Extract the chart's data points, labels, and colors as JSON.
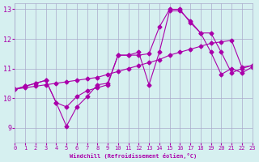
{
  "background_color": "#d6f0f0",
  "grid_color": "#aaaacc",
  "line_color": "#aa00aa",
  "xlabel": "Windchill (Refroidissement éolien,°C)",
  "xlim": [
    0,
    23
  ],
  "ylim": [
    8.5,
    13.2
  ],
  "yticks": [
    9,
    10,
    11,
    12,
    13
  ],
  "xticks": [
    0,
    1,
    2,
    3,
    4,
    5,
    6,
    7,
    8,
    9,
    10,
    11,
    12,
    13,
    14,
    15,
    16,
    17,
    18,
    19,
    20,
    21,
    22,
    23
  ],
  "series1_x": [
    0,
    1,
    2,
    3,
    4,
    5,
    6,
    7,
    8,
    9,
    10,
    11,
    12,
    13,
    14,
    15,
    16,
    17,
    18,
    19,
    20,
    21,
    22,
    23
  ],
  "series1_y": [
    10.3,
    10.35,
    10.4,
    10.45,
    10.5,
    10.55,
    10.6,
    10.65,
    10.7,
    10.8,
    10.9,
    11.0,
    11.1,
    11.2,
    11.3,
    11.45,
    11.55,
    11.65,
    11.75,
    11.85,
    11.9,
    11.95,
    11.05,
    11.1
  ],
  "series2_x": [
    0,
    1,
    2,
    3,
    4,
    5,
    6,
    7,
    8,
    9,
    10,
    11,
    12,
    13,
    14,
    15,
    16,
    17,
    18,
    19,
    20,
    21,
    22,
    23
  ],
  "series2_y": [
    10.3,
    10.4,
    10.5,
    10.6,
    9.85,
    9.7,
    10.05,
    10.25,
    10.35,
    10.45,
    11.45,
    11.45,
    11.55,
    10.45,
    11.55,
    12.95,
    12.95,
    12.6,
    12.2,
    12.2,
    11.55,
    10.85,
    11.0,
    11.1
  ],
  "series3_x": [
    0,
    1,
    2,
    3,
    4,
    5,
    6,
    7,
    8,
    9,
    10,
    11,
    12,
    13,
    14,
    15,
    16,
    17,
    18,
    19,
    20,
    21,
    22,
    23
  ],
  "series3_y": [
    10.3,
    10.4,
    10.5,
    10.6,
    9.85,
    9.05,
    9.7,
    10.05,
    10.45,
    10.5,
    11.45,
    11.45,
    11.45,
    11.5,
    12.4,
    13.0,
    13.0,
    12.55,
    12.2,
    11.55,
    10.8,
    11.0,
    10.85,
    11.05
  ]
}
